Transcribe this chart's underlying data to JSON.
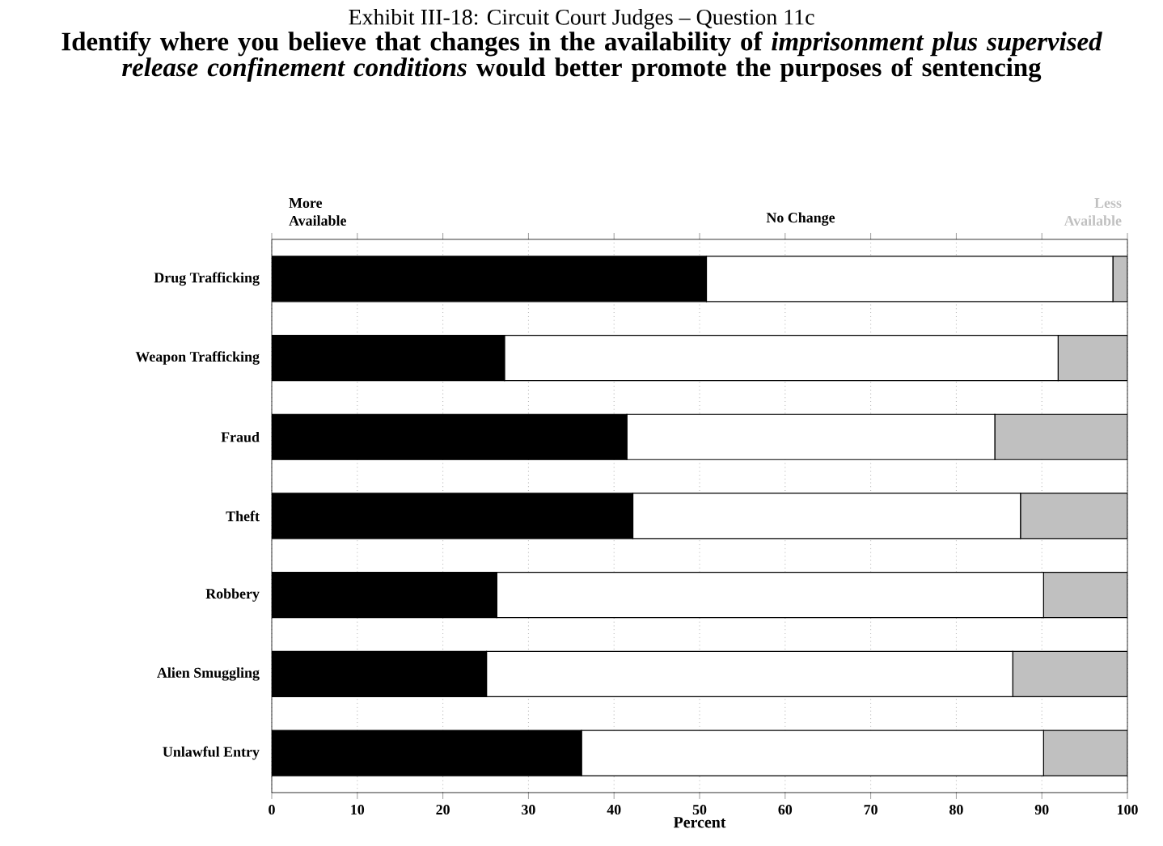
{
  "chart_data": {
    "type": "bar",
    "orientation": "horizontal",
    "stacked": true,
    "title": "Exhibit III-18:  Circuit Court Judges – Question 11c",
    "subtitle": "**Identify where you believe that changes in the availability of *imprisonment plus supervised release confinement conditions* would better promote the purposes of sentencing**",
    "categories": [
      "Drug Trafficking",
      "Weapon Trafficking",
      "Fraud",
      "Theft",
      "Robbery",
      "Alien Smuggling",
      "Unlawful Entry"
    ],
    "series": [
      {
        "name": "More Available",
        "color": "#000000",
        "values": [
          50.8,
          27.2,
          41.5,
          42.2,
          26.3,
          25.1,
          36.2
        ]
      },
      {
        "name": "No Change",
        "color": "#ffffff",
        "values": [
          47.5,
          64.7,
          43.0,
          45.3,
          63.9,
          61.5,
          54.0
        ]
      },
      {
        "name": "Less Available",
        "color": "#c0c0c0",
        "values": [
          1.7,
          8.1,
          15.5,
          12.5,
          9.8,
          13.4,
          9.8
        ]
      }
    ],
    "xlabel": "Percent",
    "xlim": [
      0,
      100
    ],
    "xticks": [
      0,
      10,
      20,
      30,
      40,
      50,
      60,
      70,
      80,
      90,
      100
    ],
    "grid": "x",
    "legend": "top"
  }
}
